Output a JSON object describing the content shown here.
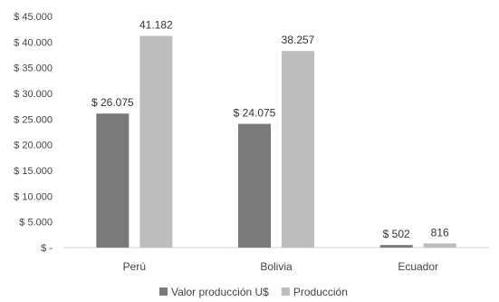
{
  "chart_data": {
    "type": "bar",
    "title": "",
    "xlabel": "",
    "ylabel": "",
    "categories": [
      "Perú",
      "Bolivia",
      "Ecuador"
    ],
    "series": [
      {
        "name": "Valor producción U$",
        "values": [
          26075,
          24075,
          502
        ],
        "labels": [
          "$ 26.075",
          "$ 24.075",
          "$ 502"
        ],
        "color": "#7a7a7a"
      },
      {
        "name": "Producción",
        "values": [
          41182,
          38257,
          816
        ],
        "labels": [
          "41.182",
          "38.257",
          "816"
        ],
        "color": "#bdbdbd"
      }
    ],
    "ylim": [
      0,
      45000
    ],
    "yticks": [
      0,
      5000,
      10000,
      15000,
      20000,
      25000,
      30000,
      35000,
      40000,
      45000
    ],
    "ytick_labels": [
      "$ -",
      "$ 5.000",
      "$ 10.000",
      "$ 15.000",
      "$ 20.000",
      "$ 25.000",
      "$ 30.000",
      "$ 35.000",
      "$ 40.000",
      "$ 45.000"
    ],
    "grid": false,
    "legend_position": "bottom"
  }
}
